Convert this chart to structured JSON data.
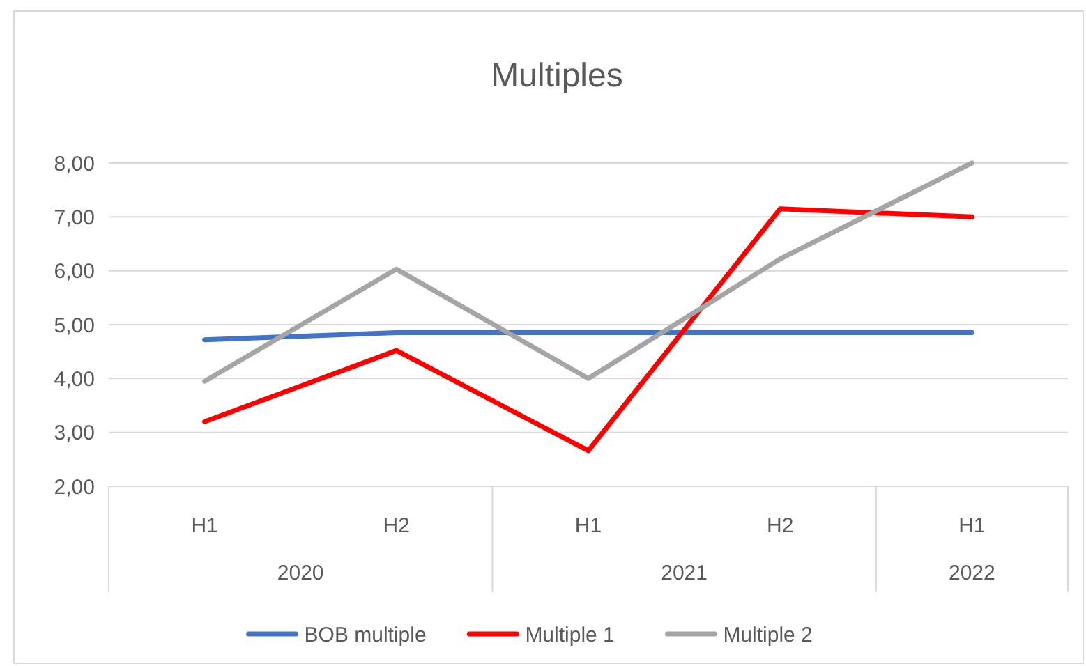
{
  "chart_data": {
    "type": "line",
    "title": "Multiples",
    "categories": [
      "H1",
      "H2",
      "H1",
      "H2",
      "H1"
    ],
    "series": [
      {
        "name": "BOB multiple",
        "color": "#4472c4",
        "values": [
          4.72,
          4.85,
          4.85,
          4.85,
          4.85
        ]
      },
      {
        "name": "Multiple 1",
        "color": "#ff0000",
        "values": [
          3.2,
          4.52,
          2.66,
          7.15,
          7.0
        ]
      },
      {
        "name": "Multiple 2",
        "color": "#a5a5a5",
        "values": [
          3.95,
          6.03,
          4.0,
          6.22,
          8.0
        ]
      }
    ],
    "ylim": [
      2,
      8
    ],
    "yticks": [
      {
        "value": 2,
        "label": "2,00"
      },
      {
        "value": 3,
        "label": "3,00"
      },
      {
        "value": 4,
        "label": "4,00"
      },
      {
        "value": 5,
        "label": "5,00"
      },
      {
        "value": 6,
        "label": "6,00"
      },
      {
        "value": 7,
        "label": "7,00"
      },
      {
        "value": 8,
        "label": "8,00"
      }
    ],
    "grid": "y",
    "legend": "bottom",
    "marker": "none",
    "line_style": "solid",
    "annotations": [
      "2020",
      "2021",
      "2022"
    ]
  }
}
